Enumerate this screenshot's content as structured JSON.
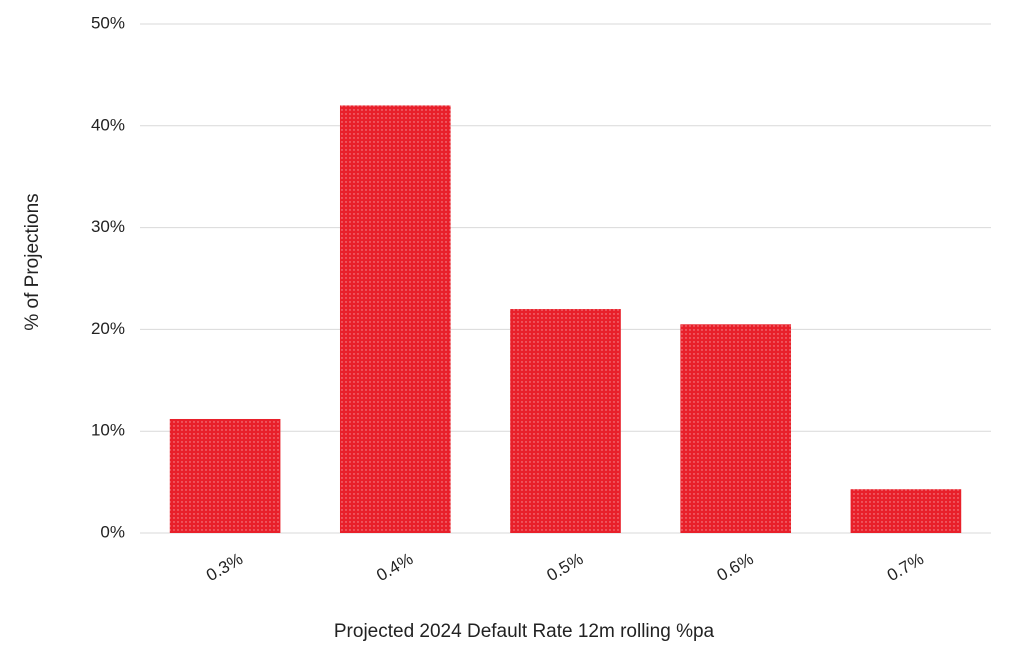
{
  "chart_data": {
    "type": "bar",
    "x_label": "Projected 2024 Default Rate 12m rolling %pa",
    "y_label": "% of Projections",
    "categories": [
      "0.3%",
      "0.4%",
      "0.5%",
      "0.6%",
      "0.7%"
    ],
    "values": [
      11.2,
      42,
      22,
      20.5,
      4.3
    ],
    "color": "#e8202a",
    "ylim": [
      0,
      50
    ],
    "yticks": [
      {
        "value": 0,
        "label": "0%"
      },
      {
        "value": 10,
        "label": "10%"
      },
      {
        "value": 20,
        "label": "20%"
      },
      {
        "value": 30,
        "label": "30%"
      },
      {
        "value": 40,
        "label": "40%"
      },
      {
        "value": 50,
        "label": "50%"
      }
    ],
    "grid": true
  }
}
